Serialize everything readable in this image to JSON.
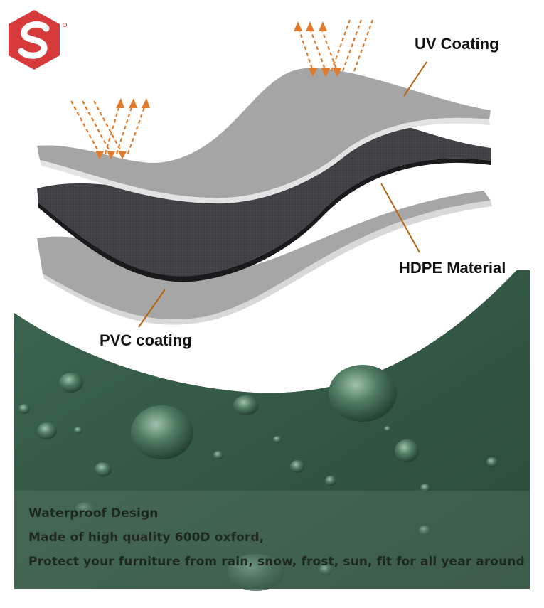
{
  "labels": {
    "uv": "UV Coating",
    "hdpe": "HDPE Material",
    "pvc": "PVC coating"
  },
  "caption": {
    "title": "Waterproof Design",
    "line1": "Made of high quality 600D oxford,",
    "line2": "Protect your furniture from rain, snow, frost, sun, fit for all year around"
  },
  "colors": {
    "brand": "#d63a3a",
    "fabric": "#345a44",
    "layer_light": "#a9a9a9",
    "layer_dark": "#3e3e42",
    "arrow": "#e07a2c",
    "leader": "#b7640f"
  },
  "icons": [
    "brand-logo",
    "uv-arrows-icon"
  ]
}
